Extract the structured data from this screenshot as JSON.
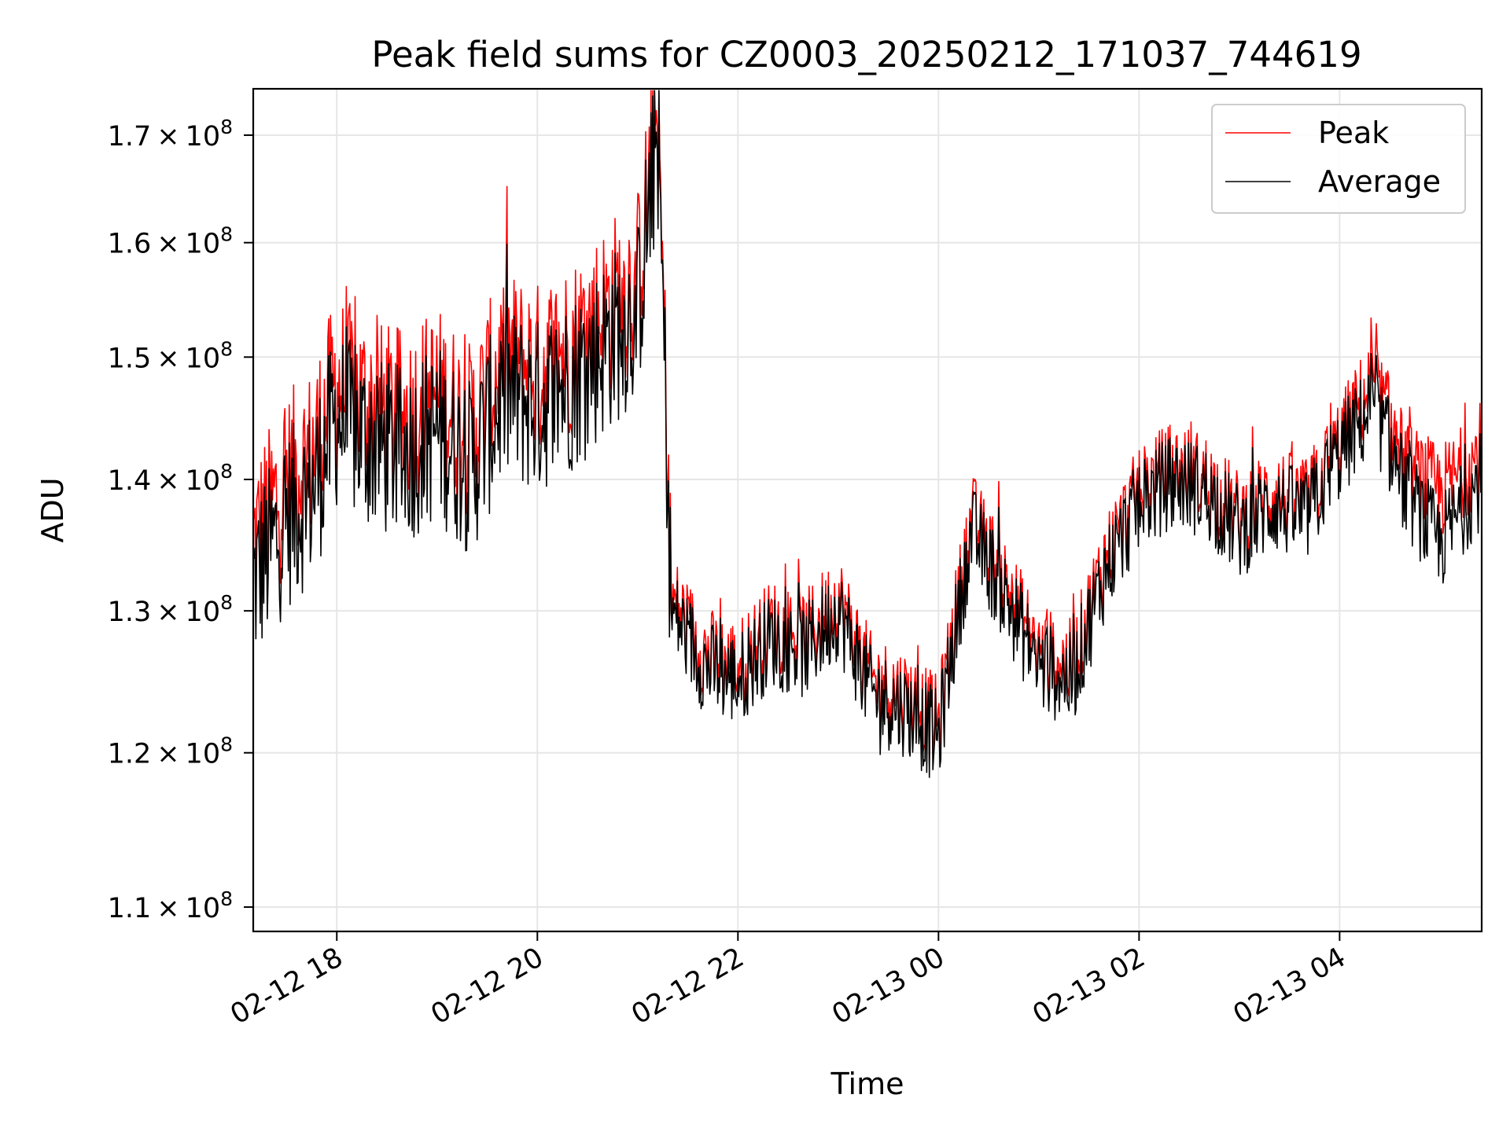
{
  "chart_data": {
    "type": "line",
    "title": "Peak field sums for CZ0003_20250212_171037_744619",
    "xlabel": "Time",
    "ylabel": "ADU",
    "grid": true,
    "legend_position": "top-right",
    "x_range": [
      "2025-02-12 17:10",
      "2025-02-13 05:25"
    ],
    "ylim": [
      108500000,
      174500000
    ],
    "x_ticks": [
      "02-12 18",
      "02-12 20",
      "02-12 22",
      "02-13 00",
      "02-13 02",
      "02-13 04"
    ],
    "y_ticks": [
      {
        "mant": "1.1",
        "exp": "8",
        "value": 110000000
      },
      {
        "mant": "1.2",
        "exp": "8",
        "value": 120000000
      },
      {
        "mant": "1.3",
        "exp": "8",
        "value": 130000000
      },
      {
        "mant": "1.4",
        "exp": "8",
        "value": 140000000
      },
      {
        "mant": "1.5",
        "exp": "8",
        "value": 150000000
      },
      {
        "mant": "1.6",
        "exp": "8",
        "value": 160000000
      },
      {
        "mant": "1.7",
        "exp": "8",
        "value": 170000000
      }
    ],
    "series": [
      {
        "name": "Peak",
        "color": "#ff0000",
        "x": [
          "2025-02-12 17:10",
          "2025-02-12 17:30",
          "2025-02-12 17:45",
          "2025-02-12 18:00",
          "2025-02-12 18:20",
          "2025-02-12 18:40",
          "2025-02-12 19:00",
          "2025-02-12 19:20",
          "2025-02-12 19:40",
          "2025-02-12 20:00",
          "2025-02-12 20:20",
          "2025-02-12 20:40",
          "2025-02-12 21:00",
          "2025-02-12 21:12",
          "2025-02-12 21:20",
          "2025-02-12 21:40",
          "2025-02-12 22:00",
          "2025-02-12 22:20",
          "2025-02-12 22:40",
          "2025-02-12 23:00",
          "2025-02-12 23:20",
          "2025-02-12 23:40",
          "2025-02-13 00:00",
          "2025-02-13 00:20",
          "2025-02-13 00:40",
          "2025-02-13 01:00",
          "2025-02-13 01:20",
          "2025-02-13 01:40",
          "2025-02-13 02:00",
          "2025-02-13 02:20",
          "2025-02-13 02:40",
          "2025-02-13 03:00",
          "2025-02-13 03:20",
          "2025-02-13 03:40",
          "2025-02-13 04:00",
          "2025-02-13 04:20",
          "2025-02-13 04:40",
          "2025-02-13 05:00",
          "2025-02-13 05:25"
        ],
        "values": [
          135000000,
          140000000,
          142000000,
          148000000,
          146000000,
          145000000,
          147000000,
          144000000,
          150000000,
          149000000,
          151000000,
          154000000,
          157000000,
          172000000,
          131000000,
          127000000,
          126000000,
          129000000,
          128000000,
          131000000,
          125000000,
          124000000,
          122000000,
          137000000,
          132000000,
          127000000,
          126000000,
          134000000,
          139000000,
          141000000,
          140000000,
          137000000,
          139000000,
          138000000,
          143000000,
          148000000,
          141000000,
          139000000,
          142000000
        ]
      },
      {
        "name": "Average",
        "color": "#000000",
        "x": [
          "2025-02-12 17:10",
          "2025-02-12 17:30",
          "2025-02-12 17:45",
          "2025-02-12 18:00",
          "2025-02-12 18:20",
          "2025-02-12 18:40",
          "2025-02-12 19:00",
          "2025-02-12 19:20",
          "2025-02-12 19:40",
          "2025-02-12 20:00",
          "2025-02-12 20:20",
          "2025-02-12 20:40",
          "2025-02-12 21:00",
          "2025-02-12 21:12",
          "2025-02-12 21:20",
          "2025-02-12 21:40",
          "2025-02-12 22:00",
          "2025-02-12 22:20",
          "2025-02-12 22:40",
          "2025-02-12 23:00",
          "2025-02-12 23:20",
          "2025-02-12 23:40",
          "2025-02-13 00:00",
          "2025-02-13 00:20",
          "2025-02-13 00:40",
          "2025-02-13 01:00",
          "2025-02-13 01:20",
          "2025-02-13 01:40",
          "2025-02-13 02:00",
          "2025-02-13 02:20",
          "2025-02-13 02:40",
          "2025-02-13 03:00",
          "2025-02-13 03:20",
          "2025-02-13 03:40",
          "2025-02-13 04:00",
          "2025-02-13 04:20",
          "2025-02-13 04:40",
          "2025-02-13 05:00",
          "2025-02-13 05:25"
        ],
        "values": [
          132000000,
          137000000,
          139000000,
          145000000,
          143000000,
          142000000,
          144000000,
          141000000,
          147000000,
          146000000,
          148000000,
          151000000,
          154000000,
          170000000,
          130000000,
          126000000,
          125000000,
          128000000,
          127000000,
          130000000,
          124000000,
          123000000,
          121000000,
          136000000,
          131000000,
          126000000,
          125000000,
          133000000,
          138000000,
          140000000,
          139000000,
          136000000,
          138000000,
          137000000,
          142000000,
          146000000,
          139000000,
          135000000,
          140000000
        ]
      }
    ]
  }
}
